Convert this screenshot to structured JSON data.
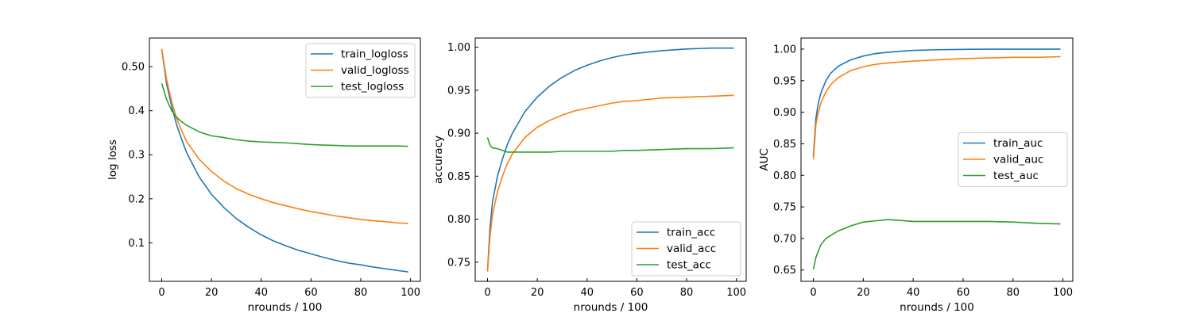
{
  "colors": {
    "blue": "#1f77b4",
    "orange": "#ff7f0e",
    "green": "#2ca02c"
  },
  "chart_data": [
    {
      "type": "line",
      "xlabel": "nrounds / 100",
      "ylabel": "log loss",
      "xlim": [
        -4.95,
        103.95
      ],
      "ylim": [
        0.0125,
        0.565
      ],
      "xticks": [
        0,
        20,
        40,
        60,
        80,
        100
      ],
      "yticks": [
        0.1,
        0.2,
        0.3,
        0.4,
        0.5
      ],
      "legend": "top-right",
      "grid": false,
      "x": [
        0,
        2,
        4,
        6,
        8,
        10,
        15,
        20,
        25,
        30,
        35,
        40,
        45,
        50,
        55,
        60,
        65,
        70,
        75,
        80,
        85,
        90,
        95,
        99
      ],
      "series": [
        {
          "name": "train_logloss",
          "color": "#1f77b4",
          "values": [
            0.54,
            0.46,
            0.41,
            0.368,
            0.335,
            0.305,
            0.25,
            0.21,
            0.18,
            0.155,
            0.135,
            0.118,
            0.104,
            0.093,
            0.083,
            0.075,
            0.067,
            0.06,
            0.054,
            0.05,
            0.045,
            0.041,
            0.037,
            0.034
          ]
        },
        {
          "name": "valid_logloss",
          "color": "#ff7f0e",
          "values": [
            0.54,
            0.47,
            0.42,
            0.383,
            0.355,
            0.33,
            0.29,
            0.262,
            0.24,
            0.223,
            0.21,
            0.2,
            0.191,
            0.184,
            0.177,
            0.171,
            0.166,
            0.161,
            0.157,
            0.153,
            0.15,
            0.148,
            0.145,
            0.144
          ]
        },
        {
          "name": "test_logloss",
          "color": "#2ca02c",
          "values": [
            0.462,
            0.425,
            0.4,
            0.385,
            0.375,
            0.367,
            0.352,
            0.343,
            0.339,
            0.334,
            0.331,
            0.329,
            0.328,
            0.327,
            0.325,
            0.323,
            0.322,
            0.321,
            0.32,
            0.32,
            0.32,
            0.32,
            0.32,
            0.319
          ]
        }
      ]
    },
    {
      "type": "line",
      "xlabel": "nrounds / 100",
      "ylabel": "accuracy",
      "xlim": [
        -4.95,
        103.95
      ],
      "ylim": [
        0.7277,
        1.0107
      ],
      "xticks": [
        0,
        20,
        40,
        60,
        80,
        100
      ],
      "yticks": [
        0.75,
        0.8,
        0.85,
        0.9,
        0.95,
        1.0
      ],
      "legend": "bottom-right",
      "grid": false,
      "x": [
        0,
        1,
        2,
        4,
        6,
        8,
        10,
        15,
        20,
        25,
        30,
        35,
        40,
        45,
        50,
        55,
        60,
        70,
        80,
        90,
        99
      ],
      "series": [
        {
          "name": "train_acc",
          "color": "#1f77b4",
          "values": [
            0.74,
            0.79,
            0.82,
            0.85,
            0.87,
            0.887,
            0.9,
            0.925,
            0.942,
            0.955,
            0.965,
            0.973,
            0.979,
            0.984,
            0.988,
            0.991,
            0.993,
            0.996,
            0.998,
            0.999,
            0.999
          ]
        },
        {
          "name": "valid_acc",
          "color": "#ff7f0e",
          "values": [
            0.739,
            0.78,
            0.805,
            0.832,
            0.85,
            0.865,
            0.876,
            0.895,
            0.907,
            0.915,
            0.921,
            0.926,
            0.929,
            0.932,
            0.935,
            0.937,
            0.938,
            0.941,
            0.942,
            0.943,
            0.944
          ]
        },
        {
          "name": "test_acc",
          "color": "#2ca02c",
          "values": [
            0.895,
            0.886,
            0.883,
            0.882,
            0.88,
            0.878,
            0.878,
            0.878,
            0.878,
            0.878,
            0.879,
            0.879,
            0.879,
            0.879,
            0.879,
            0.88,
            0.88,
            0.881,
            0.882,
            0.882,
            0.883
          ]
        }
      ]
    },
    {
      "type": "line",
      "xlabel": "nrounds / 100",
      "ylabel": "AUC",
      "xlim": [
        -4.95,
        103.95
      ],
      "ylim": [
        0.6321,
        1.0175
      ],
      "xticks": [
        0,
        20,
        40,
        60,
        80,
        100
      ],
      "yticks": [
        0.65,
        0.7,
        0.75,
        0.8,
        0.85,
        0.9,
        0.95,
        1.0
      ],
      "legend": "center-right",
      "grid": false,
      "x": [
        0,
        1,
        2,
        3,
        5,
        7,
        10,
        15,
        20,
        25,
        30,
        40,
        50,
        60,
        70,
        80,
        90,
        99
      ],
      "series": [
        {
          "name": "train_auc",
          "color": "#1f77b4",
          "values": [
            0.83,
            0.89,
            0.915,
            0.93,
            0.95,
            0.962,
            0.973,
            0.983,
            0.989,
            0.993,
            0.995,
            0.998,
            0.999,
            0.9995,
            0.9998,
            0.9999,
            0.9999,
            1.0
          ]
        },
        {
          "name": "valid_auc",
          "color": "#ff7f0e",
          "values": [
            0.825,
            0.88,
            0.9,
            0.915,
            0.932,
            0.944,
            0.955,
            0.966,
            0.972,
            0.976,
            0.978,
            0.981,
            0.983,
            0.985,
            0.986,
            0.987,
            0.987,
            0.988
          ]
        },
        {
          "name": "test_auc",
          "color": "#2ca02c",
          "values": [
            0.651,
            0.67,
            0.68,
            0.69,
            0.7,
            0.705,
            0.712,
            0.72,
            0.726,
            0.728,
            0.73,
            0.727,
            0.727,
            0.727,
            0.727,
            0.726,
            0.724,
            0.723
          ]
        }
      ]
    }
  ]
}
